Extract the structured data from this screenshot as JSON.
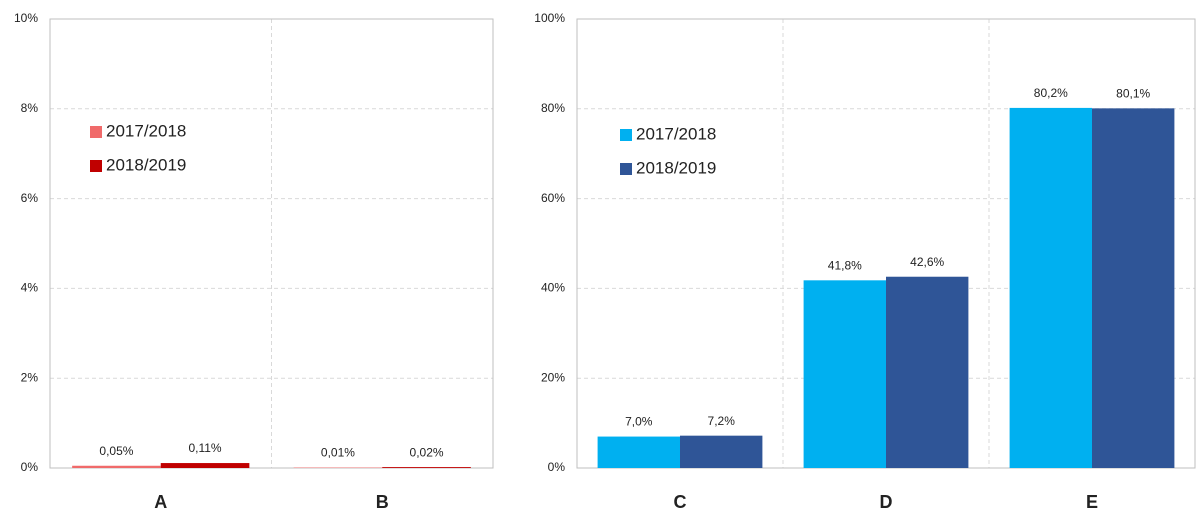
{
  "chart_data": [
    {
      "type": "bar",
      "categories": [
        "A",
        "B"
      ],
      "series": [
        {
          "name": "2017/2018",
          "color": "#f06a6a",
          "values": [
            0.05,
            0.01
          ],
          "value_labels": [
            "0,05%",
            "0,01%"
          ]
        },
        {
          "name": "2018/2019",
          "color": "#c00000",
          "values": [
            0.11,
            0.02
          ],
          "value_labels": [
            "0,11%",
            "0,02%"
          ]
        }
      ],
      "ylim": [
        0,
        10
      ],
      "yticks": [
        {
          "value": 0,
          "label": "0%"
        },
        {
          "value": 2,
          "label": "2%"
        },
        {
          "value": 4,
          "label": "4%"
        },
        {
          "value": 6,
          "label": "6%"
        },
        {
          "value": 8,
          "label": "8%"
        },
        {
          "value": 10,
          "label": "10%"
        }
      ],
      "grid": true,
      "legend": "upper left"
    },
    {
      "type": "bar",
      "categories": [
        "C",
        "D",
        "E"
      ],
      "series": [
        {
          "name": "2017/2018",
          "color": "#00b0f0",
          "values": [
            7.0,
            41.8,
            80.2
          ],
          "value_labels": [
            "7,0%",
            "41,8%",
            "80,2%"
          ]
        },
        {
          "name": "2018/2019",
          "color": "#2f5597",
          "values": [
            7.2,
            42.6,
            80.1
          ],
          "value_labels": [
            "7,2%",
            "42,6%",
            "80,1%"
          ]
        }
      ],
      "ylim": [
        0,
        100
      ],
      "yticks": [
        {
          "value": 0,
          "label": "0%"
        },
        {
          "value": 20,
          "label": "20%"
        },
        {
          "value": 40,
          "label": "40%"
        },
        {
          "value": 60,
          "label": "60%"
        },
        {
          "value": 80,
          "label": "80%"
        },
        {
          "value": 100,
          "label": "100%"
        }
      ],
      "grid": true,
      "legend": "upper left"
    }
  ]
}
